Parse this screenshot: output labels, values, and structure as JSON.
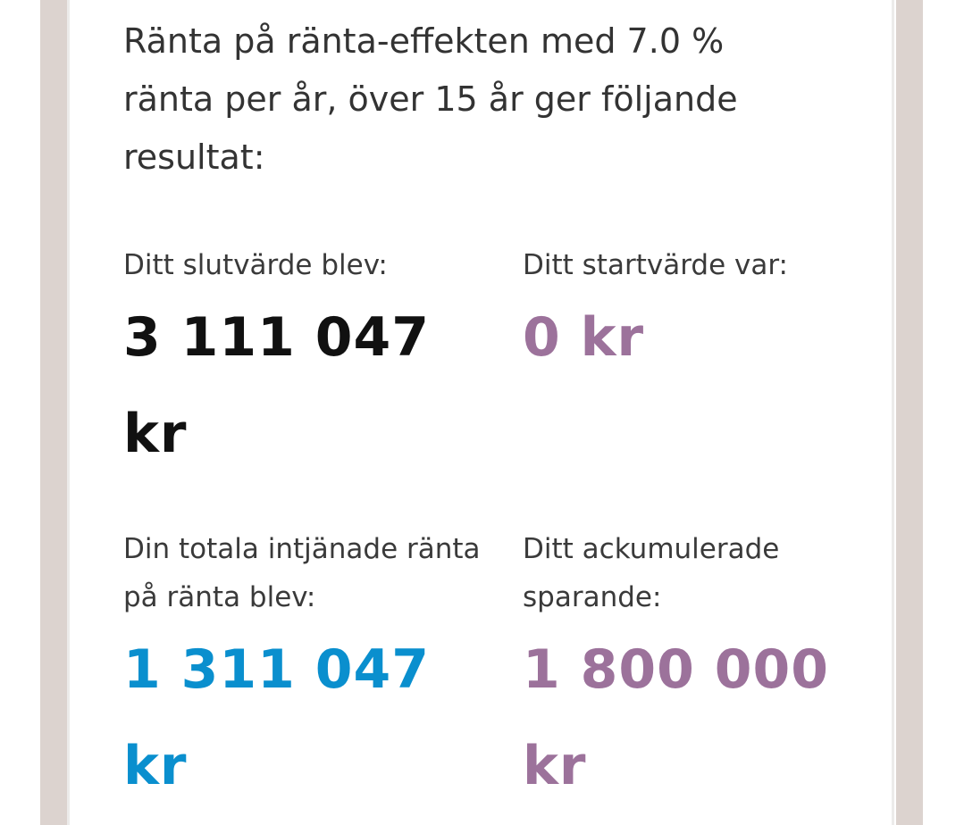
{
  "summary": "Ränta på ränta-effekten med 7.0 % ränta per år, över 15 år ger följande resultat:",
  "results": {
    "end_value": {
      "label": "Ditt slutvärde blev:",
      "value": "3 111 047 kr"
    },
    "start_value": {
      "label": "Ditt startvärde var:",
      "value": "0 kr"
    },
    "interest": {
      "label": "Din totala intjänade ränta på ränta blev:",
      "value": "1 311 047 kr"
    },
    "savings": {
      "label": "Ditt ackumulerade sparande:",
      "value": "1 800 000 kr"
    }
  },
  "colors": {
    "end_value": "#111111",
    "start_value": "#9c729b",
    "interest": "#0a8fce",
    "savings": "#9c729b",
    "rail": "#dcd3cf"
  }
}
